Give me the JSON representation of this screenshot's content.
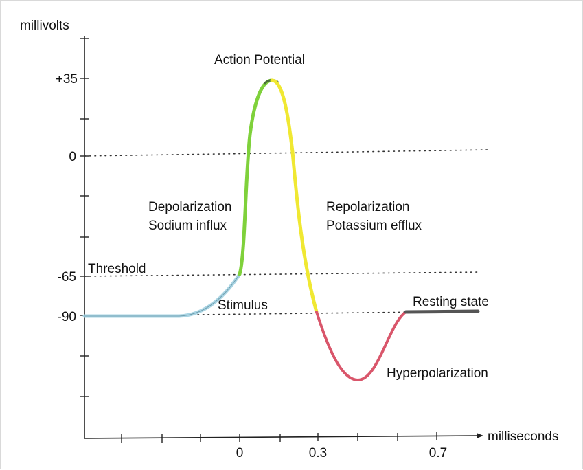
{
  "diagram": {
    "y_axis_label": "millivolts",
    "x_axis_label": "milliseconds",
    "y_ticks": [
      "+35",
      "0",
      "-65",
      "-90"
    ],
    "x_ticks": [
      "0",
      "0.3",
      "0.7"
    ],
    "labels": {
      "action_potential": "Action Potential",
      "depolarization_line1": "Depolarization",
      "depolarization_line2": "Sodium influx",
      "repolarization_line1": "Repolarization",
      "repolarization_line2": "Potassium efflux",
      "threshold": "Threshold",
      "stimulus": "Stimulus",
      "resting_state": "Resting state",
      "hyperpolarization": "Hyperpolarization"
    },
    "phase_colors": {
      "stimulus": "#a9d4e3",
      "depolarization": "#7fd13b",
      "repolarization": "#f0e832",
      "hyperpolarization": "#d9566b",
      "resting": "#555555",
      "axis": "#222222"
    }
  }
}
